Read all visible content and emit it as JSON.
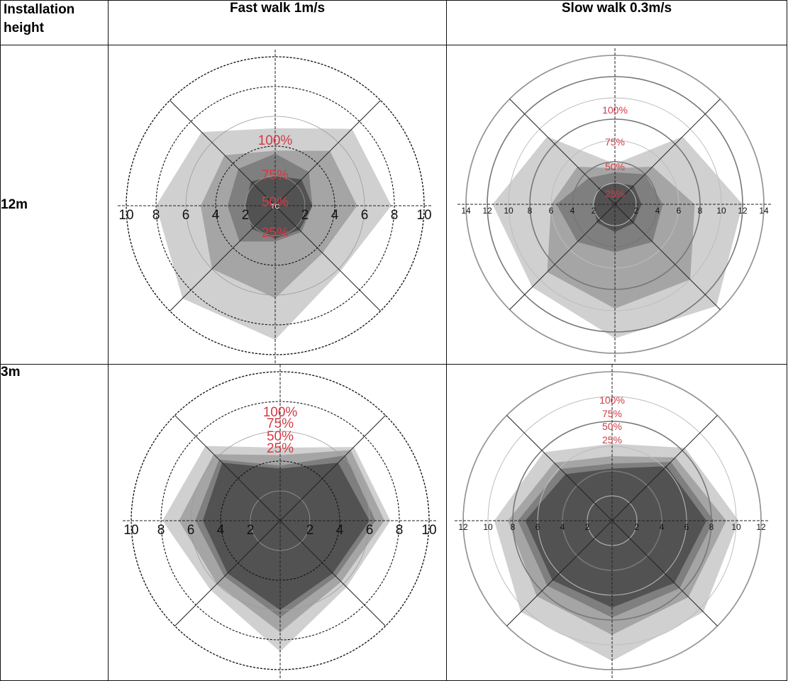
{
  "table": {
    "col_headers": [
      "Installation height",
      "Fast walk 1m/s",
      "Slow walk 0.3m/s"
    ],
    "row_labels": [
      "12m",
      "3m"
    ]
  },
  "colors": {
    "levels": [
      "#c8c8c8",
      "#9e9e9e",
      "#787878",
      "#4a4a4a"
    ],
    "pct_label": "#d23a45",
    "axis": "#222222"
  },
  "chart_data": [
    {
      "type": "radar",
      "row": "12m",
      "column": "Fast walk 1m/s",
      "rmax": 10,
      "x_tick_labels": [
        "10",
        "8",
        "6",
        "4",
        "2",
        "2",
        "4",
        "6",
        "8",
        "10"
      ],
      "center_label": "TC",
      "level_labels": [
        "100%",
        "75%",
        "50%",
        "25%"
      ],
      "axis_angles_deg": [
        0,
        45,
        90,
        135,
        180,
        225,
        270,
        315
      ],
      "series": [
        {
          "label": "100%",
          "values": [
            5.2,
            7.3,
            7.8,
            6.2,
            9.0,
            8.8,
            8.0,
            7.0
          ]
        },
        {
          "label": "75%",
          "values": [
            3.7,
            5.2,
            5.5,
            4.5,
            6.2,
            6.0,
            5.0,
            4.8
          ]
        },
        {
          "label": "50%",
          "values": [
            3.5,
            3.2,
            2.5,
            2.5,
            2.4,
            3.4,
            3.2,
            3.5
          ]
        },
        {
          "label": "25%",
          "values": [
            2.0,
            2.5,
            2.5,
            2.3,
            2.2,
            2.2,
            2.0,
            2.3
          ]
        }
      ]
    },
    {
      "type": "radar",
      "row": "12m",
      "column": "Slow walk 0.3m/s",
      "rmax": 14,
      "x_tick_labels": [
        "14",
        "12",
        "10",
        "8",
        "6",
        "4",
        "2",
        "2",
        "4",
        "6",
        "8",
        "10",
        "12",
        "14"
      ],
      "center_label": "",
      "level_labels": [
        "100%",
        "75%",
        "50%",
        "25%"
      ],
      "axis_angles_deg": [
        0,
        45,
        90,
        135,
        180,
        225,
        270,
        315
      ],
      "series": [
        {
          "label": "100%",
          "values": [
            3.8,
            9.0,
            12.0,
            13.5,
            12.6,
            11.0,
            11.5,
            9.0
          ]
        },
        {
          "label": "75%",
          "values": [
            3.4,
            5.0,
            7.5,
            10.0,
            9.8,
            9.0,
            6.0,
            5.0
          ]
        },
        {
          "label": "50%",
          "values": [
            3.0,
            4.0,
            4.5,
            5.0,
            4.5,
            5.0,
            5.5,
            3.5
          ]
        },
        {
          "label": "25%",
          "values": [
            2.0,
            2.5,
            2.5,
            2.5,
            2.6,
            2.4,
            2.0,
            2.2
          ]
        }
      ]
    },
    {
      "type": "radar",
      "row": "3m",
      "column": "Fast walk 1m/s",
      "rmax": 10,
      "x_tick_labels": [
        "10",
        "8",
        "6",
        "4",
        "2",
        "2",
        "4",
        "6",
        "8",
        "10"
      ],
      "center_label": "",
      "level_labels": [
        "100%",
        "75%",
        "50%",
        "25%"
      ],
      "axis_angles_deg": [
        0,
        45,
        90,
        135,
        180,
        225,
        270,
        315
      ],
      "series": [
        {
          "label": "100%",
          "values": [
            4.9,
            7.0,
            7.4,
            6.3,
            8.8,
            6.6,
            7.9,
            7.1
          ]
        },
        {
          "label": "75%",
          "values": [
            4.4,
            6.7,
            7.0,
            5.8,
            7.5,
            6.0,
            6.8,
            6.3
          ]
        },
        {
          "label": "50%",
          "values": [
            3.7,
            6.2,
            6.4,
            5.3,
            6.5,
            5.3,
            5.7,
            5.8
          ]
        },
        {
          "label": "25%",
          "values": [
            3.5,
            5.5,
            6.0,
            5.0,
            6.0,
            5.0,
            5.2,
            5.5
          ]
        }
      ]
    },
    {
      "type": "radar",
      "row": "3m",
      "column": "Slow walk 0.3m/s",
      "rmax": 12,
      "x_tick_labels": [
        "12",
        "10",
        "8",
        "6",
        "4",
        "2",
        "2",
        "4",
        "6",
        "8",
        "10",
        "12"
      ],
      "center_label": "",
      "level_labels": [
        "100%",
        "75%",
        "50%",
        "25%"
      ],
      "axis_angles_deg": [
        0,
        45,
        90,
        135,
        180,
        225,
        270,
        315
      ],
      "series": [
        {
          "label": "100%",
          "values": [
            6.2,
            8.3,
            10.2,
            10.4,
            11.3,
            10.4,
            9.5,
            7.8
          ]
        },
        {
          "label": "75%",
          "values": [
            5.2,
            7.2,
            9.2,
            8.7,
            9.2,
            8.6,
            8.4,
            6.6
          ]
        },
        {
          "label": "50%",
          "values": [
            4.6,
            6.7,
            8.2,
            7.7,
            7.8,
            7.4,
            7.6,
            5.9
          ]
        },
        {
          "label": "25%",
          "values": [
            4.2,
            6.2,
            7.6,
            7.1,
            7.0,
            6.8,
            7.0,
            5.3
          ]
        }
      ]
    }
  ]
}
